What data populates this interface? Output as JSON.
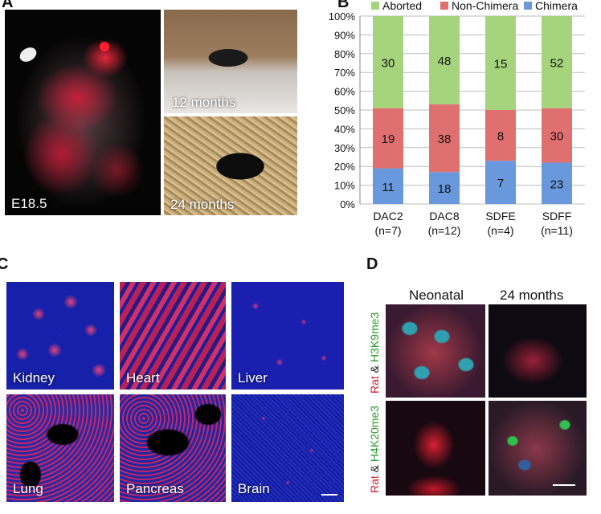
{
  "panel_a": {
    "letter": "A",
    "embryo_label": "E18.5",
    "mouse_label_1": "12 months",
    "mouse_label_2": "24 months"
  },
  "panel_b": {
    "letter": "B"
  },
  "chart_data": {
    "type": "bar",
    "stacked": true,
    "categories": [
      "DAC2",
      "DAC8",
      "SDFE",
      "SDFF"
    ],
    "category_sublabels": [
      "(n=7)",
      "(n=12)",
      "(n=4)",
      "(n=11)"
    ],
    "series": [
      {
        "name": "Chimera",
        "values": [
          11,
          18,
          7,
          23
        ],
        "percent": [
          19,
          17,
          23,
          22
        ],
        "color": "#6a98dc"
      },
      {
        "name": "Non-Chimera",
        "values": [
          19,
          38,
          8,
          30
        ],
        "percent": [
          32,
          36,
          27,
          29
        ],
        "color": "#e07070"
      },
      {
        "name": "Aborted",
        "values": [
          30,
          48,
          15,
          52
        ],
        "percent": [
          49,
          47,
          50,
          49
        ],
        "color": "#a6d47c"
      }
    ],
    "legend_order": [
      "Aborted",
      "Non-Chimera",
      "Chimera"
    ],
    "legend_position": "top",
    "yticks": [
      "0%",
      "10%",
      "20%",
      "30%",
      "40%",
      "50%",
      "60%",
      "70%",
      "80%",
      "90%",
      "100%"
    ],
    "ylim": [
      0,
      100
    ],
    "grid": true
  },
  "panel_c": {
    "letter": "C",
    "tissues": [
      "Kidney",
      "Heart",
      "Liver",
      "Lung",
      "Pancreas",
      "Brain"
    ]
  },
  "panel_d": {
    "letter": "D",
    "col_labels": [
      "Neonatal",
      "24 months"
    ],
    "row1": {
      "part1": "Rat",
      "amp": " & ",
      "part2": "H3K9me3"
    },
    "row2": {
      "part1": "Rat",
      "amp": " & ",
      "part2": "H4K20me3"
    }
  }
}
